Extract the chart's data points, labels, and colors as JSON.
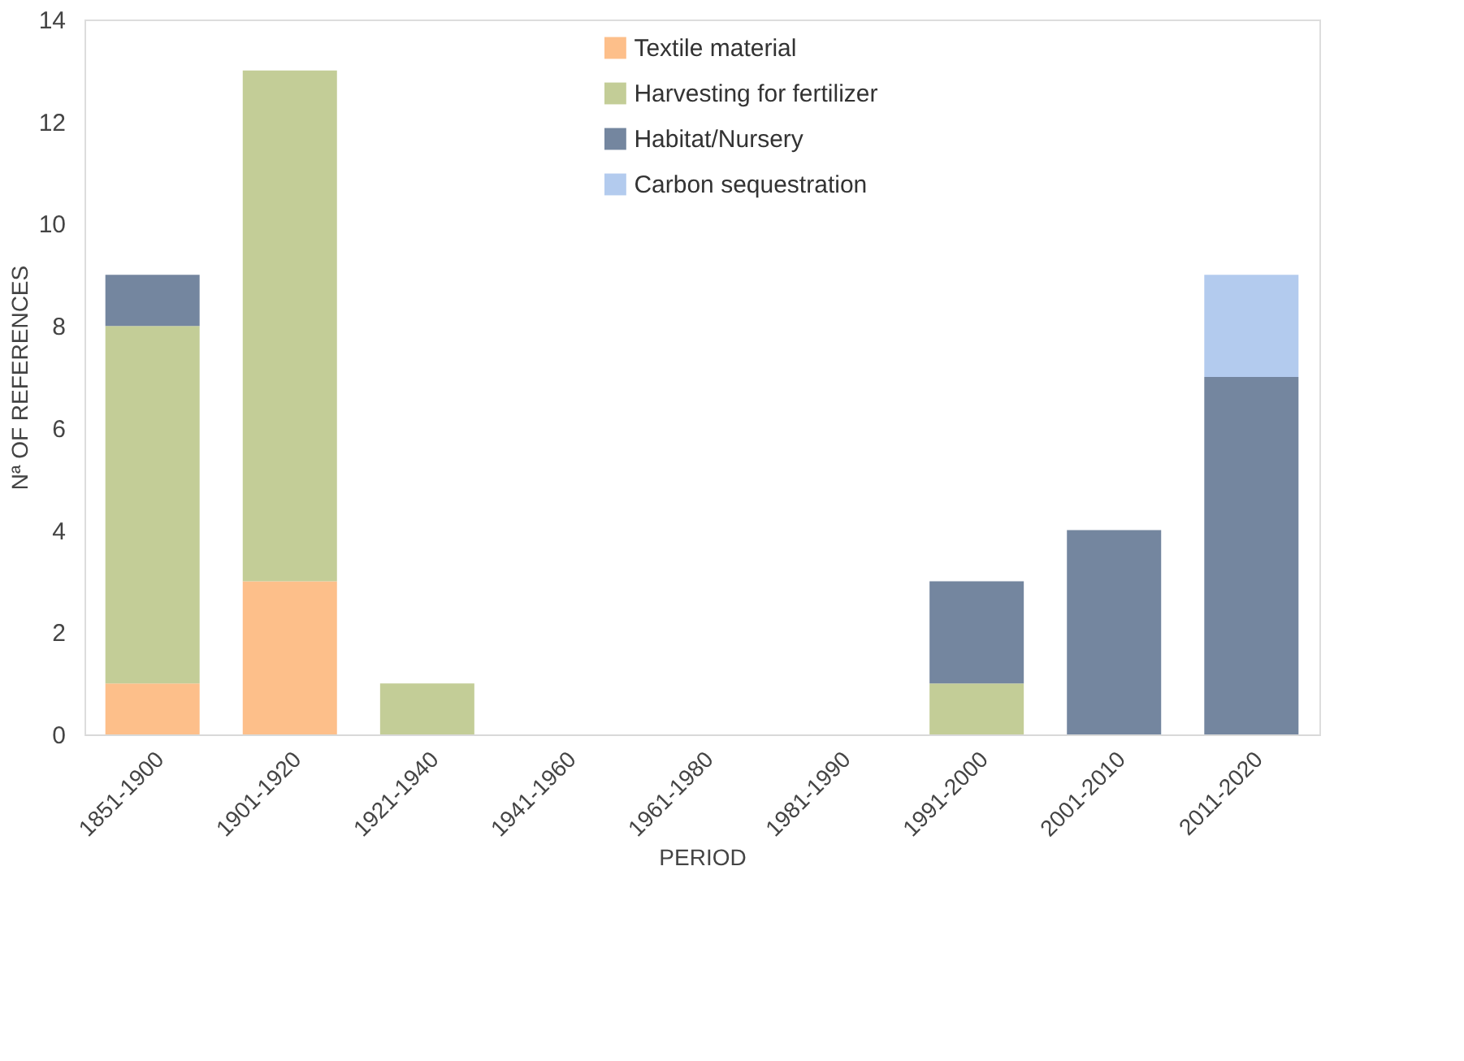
{
  "chart_data": {
    "type": "bar",
    "stacked": true,
    "xlabel": "PERIOD",
    "ylabel": "Nª OF REFERENCES",
    "categories": [
      "1851-1900",
      "1901-1920",
      "1921-1940",
      "1941-1960",
      "1961-1980",
      "1981-1990",
      "1991-2000",
      "2001-2010",
      "2011-2020"
    ],
    "series": [
      {
        "name": "Textile material",
        "color": "#fdbf8a",
        "values": [
          1,
          3,
          0,
          0,
          0,
          0,
          0,
          0,
          0
        ]
      },
      {
        "name": "Harvesting for fertilizer",
        "color": "#c3cd97",
        "values": [
          7,
          10,
          1,
          0,
          0,
          0,
          1,
          0,
          0
        ]
      },
      {
        "name": "Habitat/Nursery",
        "color": "#74869f",
        "values": [
          1,
          0,
          0,
          0,
          0,
          0,
          2,
          4,
          7
        ]
      },
      {
        "name": "Carbon sequestration",
        "color": "#b3cbee",
        "values": [
          0,
          0,
          0,
          0,
          0,
          0,
          0,
          0,
          2
        ]
      }
    ],
    "ylim": [
      0,
      14
    ],
    "yticks": [
      0,
      2,
      4,
      6,
      8,
      10,
      12,
      14
    ],
    "grid": false,
    "legend": "top"
  }
}
